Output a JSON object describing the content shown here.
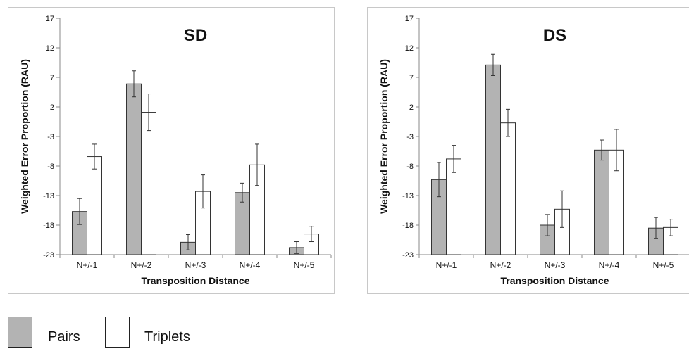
{
  "legend": {
    "pairs_label": "Pairs",
    "triplets_label": "Triplets",
    "pairs_color": "#b3b3b3",
    "triplets_color": "#ffffff"
  },
  "chart_data": [
    {
      "type": "bar",
      "title": "SD",
      "xlabel": "Transposition Distance",
      "ylabel": "Weighted Error Proportion (RAU)",
      "ylim": [
        -23,
        17
      ],
      "yticks": [
        -23,
        -18,
        -13,
        -8,
        -3,
        2,
        7,
        12,
        17
      ],
      "categories": [
        "N+/-1",
        "N+/-2",
        "N+/-3",
        "N+/-4",
        "N+/-5"
      ],
      "series": [
        {
          "name": "Pairs",
          "color": "#b3b3b3",
          "values": [
            -15.7,
            5.9,
            -20.9,
            -12.5,
            -21.8
          ],
          "errors": [
            2.2,
            2.2,
            1.3,
            1.6,
            1.0
          ]
        },
        {
          "name": "Triplets",
          "color": "#ffffff",
          "values": [
            -6.4,
            1.1,
            -12.3,
            -7.8,
            -19.5
          ],
          "errors": [
            2.1,
            3.1,
            2.8,
            3.5,
            1.3
          ]
        }
      ]
    },
    {
      "type": "bar",
      "title": "DS",
      "xlabel": "Transposition Distance",
      "ylabel": "Weighted Error Proportion (RAU)",
      "ylim": [
        -23,
        17
      ],
      "yticks": [
        -23,
        -18,
        -13,
        -8,
        -3,
        2,
        7,
        12,
        17
      ],
      "categories": [
        "N+/-1",
        "N+/-2",
        "N+/-3",
        "N+/-4",
        "N+/-5"
      ],
      "series": [
        {
          "name": "Pairs",
          "color": "#b3b3b3",
          "values": [
            -10.3,
            9.1,
            -18.0,
            -5.3,
            -18.5
          ],
          "errors": [
            2.9,
            1.8,
            1.8,
            1.7,
            1.8
          ]
        },
        {
          "name": "Triplets",
          "color": "#ffffff",
          "values": [
            -6.8,
            -0.7,
            -15.3,
            -5.3,
            -18.4
          ],
          "errors": [
            2.3,
            2.3,
            3.1,
            3.5,
            1.4
          ]
        }
      ]
    }
  ]
}
